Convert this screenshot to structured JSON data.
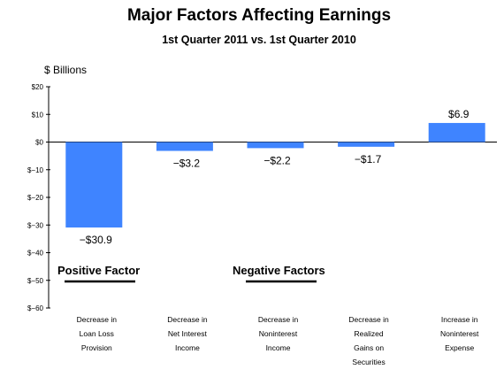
{
  "chart_data": {
    "type": "bar",
    "title": "Major Factors Affecting Earnings",
    "subtitle": "1st Quarter 2011 vs. 1st Quarter 2010",
    "ylabel": "$ Billions",
    "xlabel": "",
    "ylim": [
      -60,
      20
    ],
    "yticks": [
      20,
      10,
      0,
      -10,
      -20,
      -30,
      -40,
      -50,
      -60
    ],
    "ytick_labels": [
      "$20",
      "$10",
      "$0",
      "$−10",
      "$−20",
      "$−30",
      "$−40",
      "$−50",
      "$−60"
    ],
    "grid": false,
    "bar_color": "#3f84ff",
    "categories": [
      [
        "Decrease in",
        "Loan Loss",
        "Provision"
      ],
      [
        "Decrease in",
        "Net Interest",
        "Income"
      ],
      [
        "Decrease in",
        "Noninterest",
        "Income"
      ],
      [
        "Decrease in",
        "Realized",
        "Gains on",
        "Securities"
      ],
      [
        "Increase in",
        "Noninterest",
        "Expense"
      ]
    ],
    "values": [
      -30.9,
      -3.2,
      -2.2,
      -1.7,
      6.9
    ],
    "data_labels": [
      "−$30.9",
      "−$3.2",
      "−$2.2",
      "−$1.7",
      "$6.9"
    ],
    "annotations": [
      {
        "text": "Positive Factor"
      },
      {
        "text": "Negative Factors"
      }
    ]
  }
}
